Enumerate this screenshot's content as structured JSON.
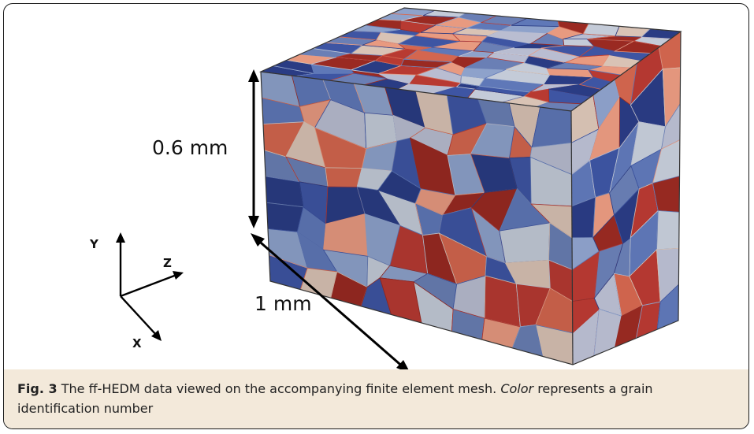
{
  "figure": {
    "dimension_height_label": "0.6 mm",
    "dimension_length_label": "1 mm",
    "axes": {
      "y": "Y",
      "z": "Z",
      "x": "X"
    },
    "grain_colors": [
      "#b83a32",
      "#d4664f",
      "#e89a80",
      "#d9c3b5",
      "#b9bdd1",
      "#8ea2cb",
      "#5f78b8",
      "#3e55a3",
      "#2a3c84",
      "#9a2a22",
      "#c4cbd8",
      "#6a7fb5"
    ]
  },
  "caption": {
    "label": "Fig. 3",
    "text_before": " The ff-HEDM data viewed on the accompanying finite element mesh. ",
    "italic_word": "Color",
    "text_after": " represents a grain identification number"
  }
}
